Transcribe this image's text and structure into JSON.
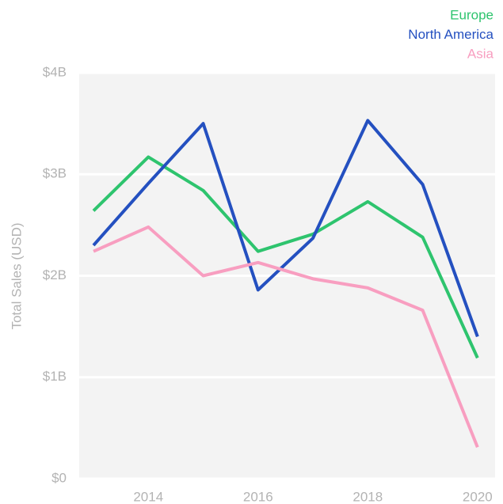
{
  "chart_data": {
    "type": "line",
    "y_label": "Total Sales (USD)",
    "x": [
      2013,
      2014,
      2015,
      2016,
      2017,
      2018,
      2019,
      2020
    ],
    "series": [
      {
        "name": "Europe",
        "color": "#2ec46e",
        "values": [
          2.64,
          3.17,
          2.84,
          2.24,
          2.41,
          2.73,
          2.38,
          1.19
        ]
      },
      {
        "name": "North America",
        "color": "#2450c0",
        "values": [
          2.3,
          2.91,
          3.5,
          1.86,
          2.37,
          3.53,
          2.9,
          1.4
        ]
      },
      {
        "name": "Asia",
        "color": "#f89ec0",
        "values": [
          2.24,
          2.48,
          2.0,
          2.13,
          1.97,
          1.88,
          1.66,
          0.31
        ]
      }
    ],
    "xlim": [
      2012.74,
      2020.32
    ],
    "xticks": [
      2014,
      2016,
      2018,
      2020
    ],
    "ylim": [
      0,
      4
    ],
    "yticks": [
      {
        "value": 0,
        "label": "$0"
      },
      {
        "value": 1,
        "label": "$1B"
      },
      {
        "value": 2,
        "label": "$2B"
      },
      {
        "value": 3,
        "label": "$3B"
      },
      {
        "value": 4,
        "label": "$4B"
      }
    ],
    "grid": true,
    "legend": "top-right"
  }
}
